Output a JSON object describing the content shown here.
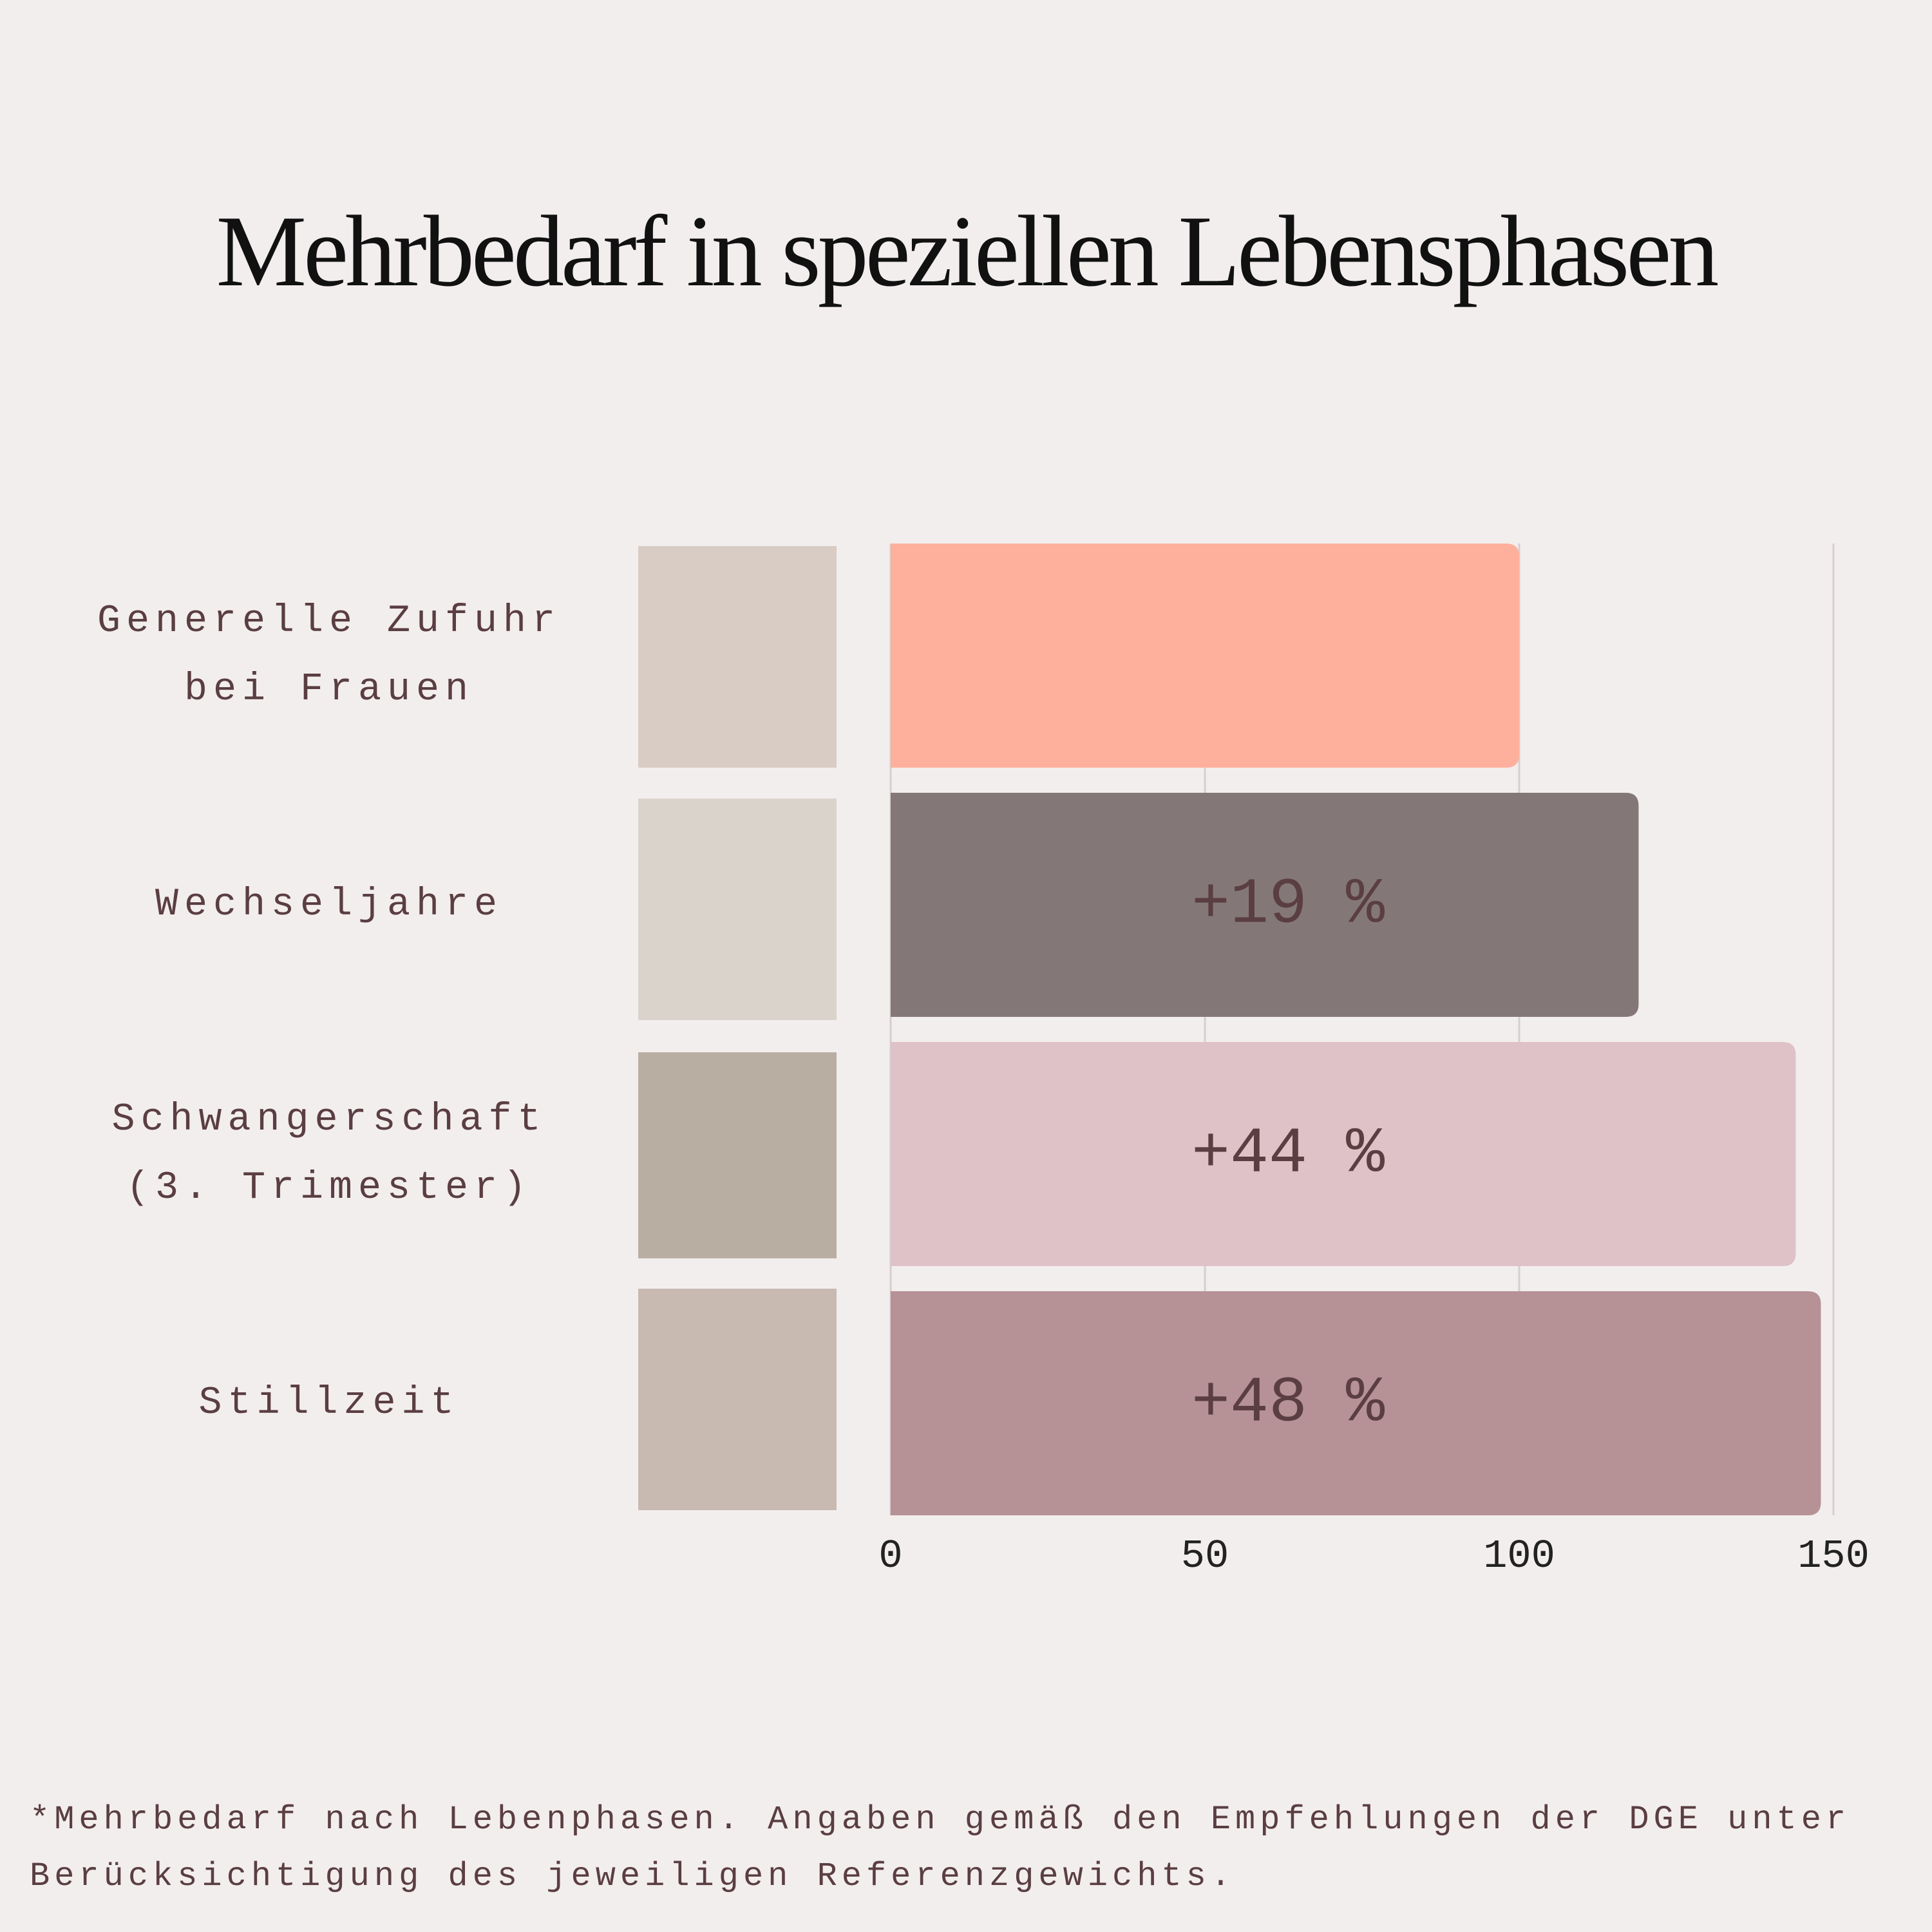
{
  "chart_data": {
    "type": "barh",
    "title": "Mehrbedarf in speziellen Lebensphasen",
    "categories": [
      "Generelle Zufuhr bei Frauen",
      "Wechseljahre",
      "Schwangerschaft (3. Trimester)",
      "Stillzeit"
    ],
    "values": [
      100,
      119,
      144,
      148
    ],
    "colors": [
      "#ffb09c",
      "#847778",
      "#dfc1c8",
      "#b69195"
    ],
    "annotations": [
      "+19 %",
      "+44 %",
      "+48 %"
    ],
    "xlim": [
      0,
      150
    ],
    "xticks": [
      0,
      50,
      100,
      150
    ],
    "grid": true,
    "footnote": "*Mehrbedarf nach Lebenphasen. Angaben gemäß den Empfehlungen der DGE unter Berücksichtigung des jeweiligen Referenzgewichts."
  }
}
